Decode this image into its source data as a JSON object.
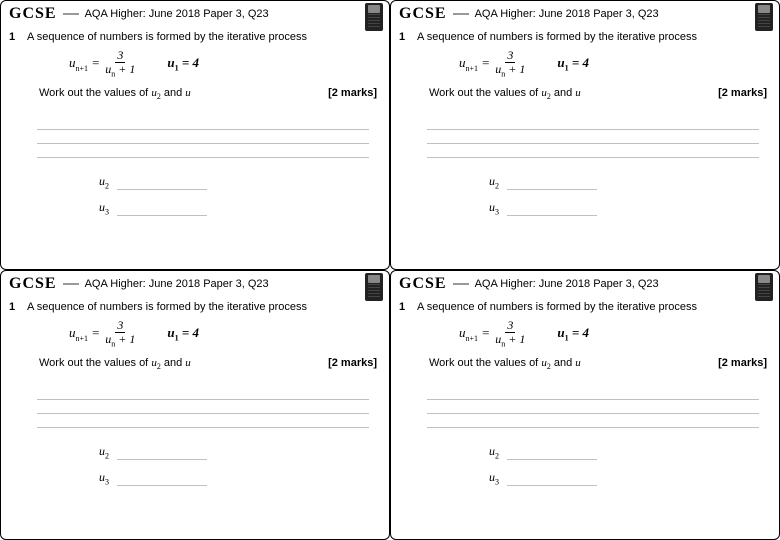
{
  "panel": {
    "gcse": "GCSE",
    "paper_ref": "AQA Higher: June 2018 Paper 3, Q23",
    "qnum": "1",
    "qtext": "A sequence of numbers is formed by the iterative process",
    "formula_lhs": "u",
    "formula_lhs_sub": "n+1",
    "formula_eq": " = ",
    "frac_num": "3",
    "frac_den_u": "u",
    "frac_den_sub": "n",
    "frac_den_tail": " + 1",
    "init_u": "u",
    "init_sub": "1",
    "init_eq": " = 4",
    "workout_prefix": "Work out the values of ",
    "workout_u2": "u",
    "workout_u2_sub": "2",
    "workout_and": " and ",
    "workout_u3": "u",
    "marks": "[2 marks]",
    "ans_u2": "u",
    "ans_u2_sub": "2",
    "ans_u3": "u",
    "ans_u3_sub": "3"
  },
  "colors": {
    "line": "#bfbfbf",
    "text": "#000000",
    "bg": "#ffffff"
  }
}
